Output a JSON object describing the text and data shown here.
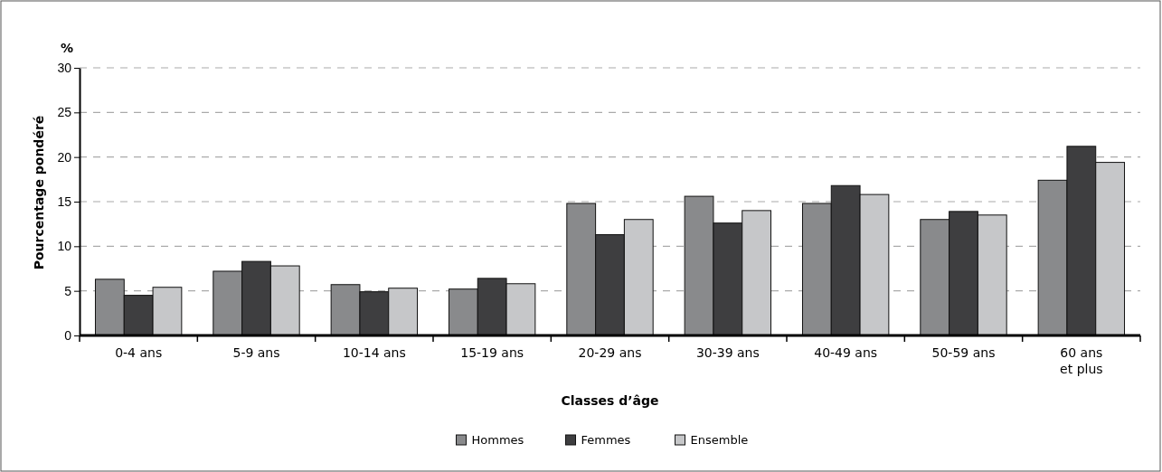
{
  "chart_data": {
    "type": "bar",
    "ylabel": "Pourcentage pondéré",
    "xlabel": "Classes d’âge",
    "annotations": [
      "%"
    ],
    "categories": [
      "0-4 ans",
      "5-9 ans",
      "10-14 ans",
      "15-19 ans",
      "20-29 ans",
      "30-39 ans",
      "40-49 ans",
      "50-59 ans",
      "60 ans\net plus"
    ],
    "series": [
      {
        "name": "Hommes",
        "color": "#898a8c",
        "values": [
          6.3,
          7.2,
          5.7,
          5.2,
          14.8,
          15.6,
          14.8,
          13.0,
          17.4
        ]
      },
      {
        "name": "Femmes",
        "color": "#3e3e40",
        "values": [
          4.5,
          8.3,
          4.9,
          6.4,
          11.3,
          12.6,
          16.8,
          13.9,
          21.2
        ]
      },
      {
        "name": "Ensemble",
        "color": "#c6c7c9",
        "values": [
          5.4,
          7.8,
          5.3,
          5.8,
          13.0,
          14.0,
          15.8,
          13.5,
          19.4
        ]
      }
    ],
    "ylim": [
      0,
      30
    ],
    "yticks": [
      0,
      5,
      10,
      15,
      20,
      25,
      30
    ],
    "grid": "y",
    "legend": "bottom"
  }
}
